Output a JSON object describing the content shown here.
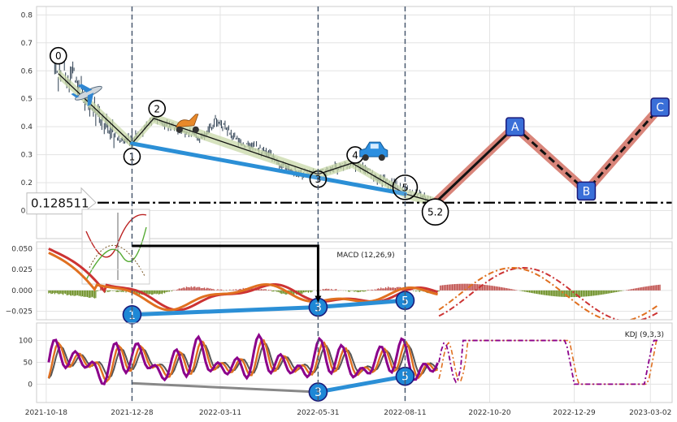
{
  "chart_data": [
    {
      "type": "line",
      "panel": "price",
      "ylim": [
        0,
        0.83
      ],
      "yticks": [
        "0.1",
        "0.2",
        "0.3",
        "0.4",
        "0.5",
        "0.6",
        "0.7",
        "0.8"
      ],
      "ytick_values": [
        0.1,
        0.2,
        0.3,
        0.4,
        0.5,
        0.6,
        0.7,
        0.8
      ],
      "xlim": [
        "2021-10-10",
        "2023-03-20"
      ],
      "xticks": [
        "2021-10-18",
        "2021-12-28",
        "2022-03-11",
        "2022-05-31",
        "2022-08-11",
        "2022-10-20",
        "2022-12-29",
        "2023-03-02"
      ],
      "grid": true,
      "price_series": [
        [
          "2021-10-25",
          0.62
        ],
        [
          "2021-10-28",
          0.58
        ],
        [
          "2021-11-01",
          0.64
        ],
        [
          "2021-11-05",
          0.56
        ],
        [
          "2021-11-09",
          0.6
        ],
        [
          "2021-11-13",
          0.53
        ],
        [
          "2021-11-17",
          0.52
        ],
        [
          "2021-11-22",
          0.48
        ],
        [
          "2021-11-27",
          0.45
        ],
        [
          "2021-12-02",
          0.43
        ],
        [
          "2021-12-07",
          0.4
        ],
        [
          "2021-12-12",
          0.38
        ],
        [
          "2021-12-17",
          0.36
        ],
        [
          "2021-12-22",
          0.35
        ],
        [
          "2021-12-28",
          0.36
        ],
        [
          "2022-01-03",
          0.38
        ],
        [
          "2022-01-09",
          0.4
        ],
        [
          "2022-01-15",
          0.43
        ],
        [
          "2022-01-21",
          0.42
        ],
        [
          "2022-01-28",
          0.4
        ],
        [
          "2022-02-04",
          0.39
        ],
        [
          "2022-02-12",
          0.38
        ],
        [
          "2022-02-20",
          0.36
        ],
        [
          "2022-02-28",
          0.38
        ],
        [
          "2022-03-07",
          0.42
        ],
        [
          "2022-03-14",
          0.4
        ],
        [
          "2022-03-21",
          0.37
        ],
        [
          "2022-03-28",
          0.34
        ],
        [
          "2022-04-05",
          0.33
        ],
        [
          "2022-04-12",
          0.32
        ],
        [
          "2022-04-20",
          0.3
        ],
        [
          "2022-04-28",
          0.27
        ],
        [
          "2022-05-06",
          0.25
        ],
        [
          "2022-05-14",
          0.24
        ],
        [
          "2022-05-22",
          0.23
        ],
        [
          "2022-05-31",
          0.23
        ],
        [
          "2022-06-07",
          0.24
        ],
        [
          "2022-06-14",
          0.25
        ],
        [
          "2022-06-21",
          0.26
        ],
        [
          "2022-06-28",
          0.27
        ],
        [
          "2022-07-05",
          0.26
        ],
        [
          "2022-07-12",
          0.24
        ],
        [
          "2022-07-19",
          0.22
        ],
        [
          "2022-07-26",
          0.2
        ],
        [
          "2022-08-02",
          0.19
        ],
        [
          "2022-08-09",
          0.18
        ],
        [
          "2022-08-16",
          0.17
        ],
        [
          "2022-08-23",
          0.16
        ],
        [
          "2022-08-30",
          0.14
        ],
        [
          "2022-09-05",
          0.13
        ]
      ],
      "wave_points": [
        {
          "label": "0",
          "date": "2021-10-28",
          "value": 0.59
        },
        {
          "label": "1",
          "date": "2021-12-28",
          "value": 0.34
        },
        {
          "label": "2",
          "date": "2022-01-15",
          "value": 0.43
        },
        {
          "label": "3",
          "date": "2022-05-31",
          "value": 0.23
        },
        {
          "label": "4",
          "date": "2022-06-28",
          "value": 0.27
        },
        {
          "label": "5",
          "date": "2022-08-11",
          "value": 0.16
        },
        {
          "label": "5.2",
          "date": "2022-09-05",
          "value": 0.13
        }
      ],
      "projection_points": [
        {
          "label": "",
          "date": "2022-09-05",
          "value": 0.128
        },
        {
          "label": "A",
          "date": "2022-11-10",
          "value": 0.4
        },
        {
          "label": "B",
          "date": "2023-01-08",
          "value": 0.17
        },
        {
          "label": "C",
          "date": "2023-03-10",
          "value": 0.47
        }
      ],
      "trendline": [
        [
          "2021-12-28",
          0.34
        ],
        [
          "2022-08-11",
          0.16
        ]
      ],
      "support_level": 0.128511,
      "support_label": "0.128511",
      "vlines": [
        "2021-12-28",
        "2022-05-31",
        "2022-08-11"
      ],
      "icons": [
        "airplane-icon",
        "scooter-icon",
        "car-icon"
      ]
    },
    {
      "type": "bar",
      "panel": "macd",
      "title": "MACD (12,26,9)",
      "ylim": [
        -0.035,
        0.058
      ],
      "yticks": [
        "0.050",
        "0.025",
        "0.000",
        "−0.025"
      ],
      "ytick_values": [
        0.05,
        0.025,
        0,
        -0.025
      ],
      "markers": [
        {
          "label": "1",
          "date": "2021-12-28",
          "value": -0.029
        },
        {
          "label": "3",
          "date": "2022-05-31",
          "value": -0.02
        },
        {
          "label": "5",
          "date": "2022-08-11",
          "value": -0.012
        }
      ]
    },
    {
      "type": "line",
      "panel": "kdj",
      "title": "KDJ (9,3,3)",
      "ylim": [
        -42,
        140
      ],
      "yticks": [
        "100",
        "50",
        "0"
      ],
      "ytick_values": [
        100,
        50,
        0
      ],
      "markers": [
        {
          "label": "3",
          "date": "2022-05-31",
          "value": -18
        },
        {
          "label": "5",
          "date": "2022-08-11",
          "value": 18
        }
      ]
    }
  ],
  "colors": {
    "price": "#2c3e50",
    "wave_fill": "#c8d8a8",
    "trend": "#2b8fd6",
    "projection_band": "#d9857a",
    "macd_fast": "#e07020",
    "macd_slow": "#cc3333",
    "hist_pos": "#c0504d",
    "hist_neg": "#6b8e23",
    "kdj_k": "#8b008b",
    "kdj_d": "#e07020",
    "kdj_j": "#555555",
    "marker_fill": "#1e88d6",
    "label_fill": "#3a6fd8"
  }
}
